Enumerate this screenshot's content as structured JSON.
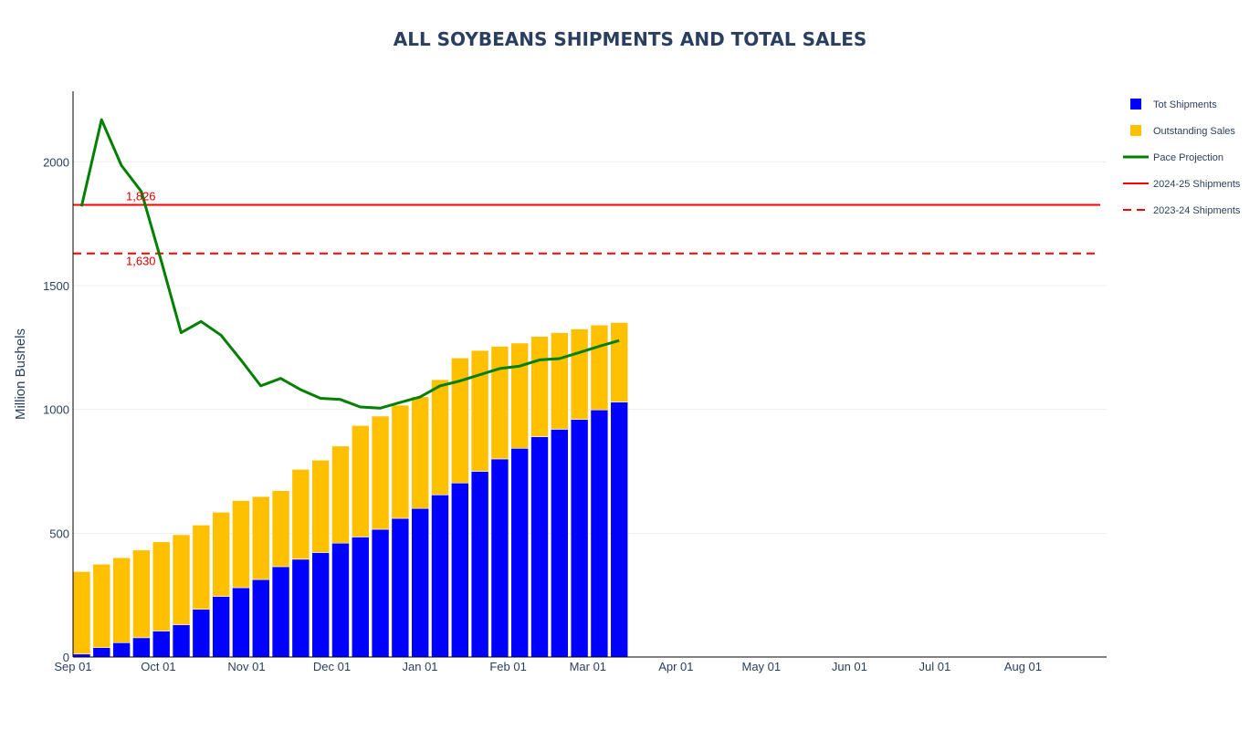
{
  "chart_data": {
    "type": "bar",
    "title": "ALL SOYBEANS SHIPMENTS AND TOTAL SALES",
    "xlabel": "",
    "ylabel": "Million Bushels",
    "ylim": [
      0,
      2285
    ],
    "y_ticks": [
      0,
      500,
      1000,
      1500,
      2000
    ],
    "y_tick_labels": [
      "0",
      "500",
      "1000",
      "1500",
      "2000"
    ],
    "x_tick_labels": [
      "Sep 01",
      "Oct 01",
      "Nov 01",
      "Dec 01",
      "Jan 01",
      "Feb 01",
      "Mar 01",
      "Apr 01",
      "May 01",
      "Jun 01",
      "Jul 01",
      "Aug 01"
    ],
    "x_tick_days": [
      0,
      30,
      61,
      91,
      122,
      153,
      181,
      212,
      242,
      273,
      303,
      334
    ],
    "x_range_days": [
      0,
      365
    ],
    "grid": true,
    "legend_position": "right",
    "categories_days": [
      0,
      7,
      14,
      21,
      28,
      35,
      42,
      49,
      56,
      63,
      70,
      77,
      84,
      91,
      98,
      105,
      112,
      119,
      126,
      133,
      140,
      147,
      154,
      161,
      168,
      175,
      182,
      189
    ],
    "series": [
      {
        "name": "Tot Shipments",
        "type": "bar",
        "color": "#0000ff",
        "values": [
          12,
          38,
          58,
          78,
          105,
          130,
          193,
          245,
          280,
          313,
          365,
          395,
          422,
          460,
          485,
          516,
          560,
          600,
          655,
          703,
          750,
          800,
          843,
          890,
          920,
          960,
          998,
          1030
        ]
      },
      {
        "name": "Outstanding Sales",
        "type": "bar",
        "color": "#ffc000",
        "values": [
          333,
          337,
          343,
          354,
          360,
          364,
          340,
          340,
          352,
          335,
          307,
          363,
          373,
          392,
          450,
          457,
          457,
          451,
          465,
          505,
          488,
          455,
          425,
          405,
          390,
          365,
          343,
          321
        ]
      },
      {
        "name": "Pace Projection",
        "type": "line",
        "color": "#008000",
        "x_days": [
          3,
          10,
          17,
          24,
          31,
          38,
          45,
          52,
          59,
          66,
          73,
          80,
          87,
          94,
          101,
          108,
          115,
          122,
          129,
          136,
          143,
          150,
          157,
          164,
          171,
          178,
          185,
          192
        ],
        "values": [
          1820,
          2170,
          1985,
          1880,
          1600,
          1310,
          1355,
          1300,
          1200,
          1095,
          1125,
          1080,
          1045,
          1040,
          1010,
          1005,
          1028,
          1050,
          1095,
          1115,
          1140,
          1165,
          1175,
          1200,
          1205,
          1230,
          1255,
          1278
        ]
      },
      {
        "name": "2024-25 Shipments",
        "type": "hline",
        "color": "#ff0000",
        "dash": "solid",
        "value": 1826
      },
      {
        "name": "2023-24 Shipments",
        "type": "hline",
        "color": "#ff0000",
        "dash": "dash",
        "value": 1630
      }
    ],
    "annotations": [
      {
        "text": "1,826",
        "value": 1826,
        "color": "#e00000"
      },
      {
        "text": "1,630",
        "value": 1630,
        "color": "#e00000"
      }
    ]
  }
}
